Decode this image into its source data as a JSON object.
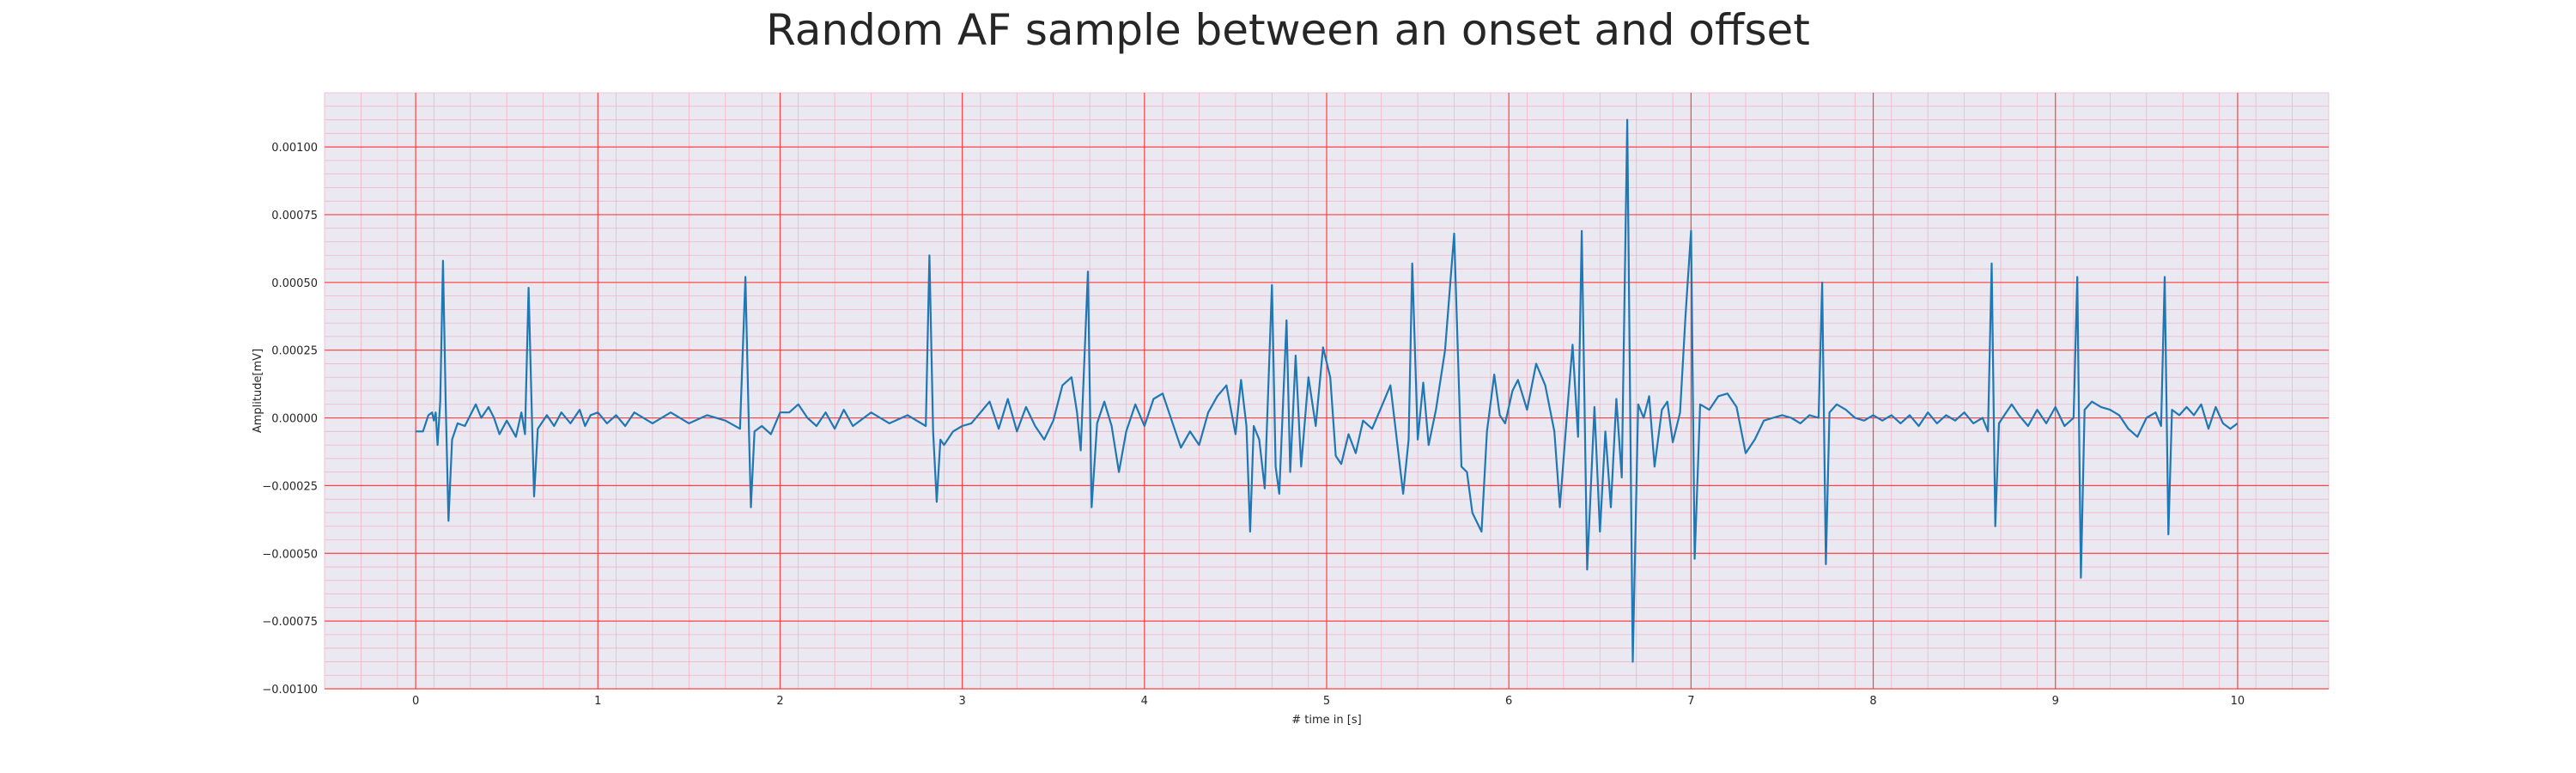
{
  "chart_data": {
    "type": "line",
    "title": "Random AF sample between an onset and offset",
    "xlabel": "# time in [s]",
    "ylabel": "Amplitude[mV]",
    "xlim": [
      -0.5,
      10.5
    ],
    "ylim": [
      -0.001,
      0.0012
    ],
    "x_ticks": [
      0,
      1,
      2,
      3,
      4,
      5,
      6,
      7,
      8,
      9,
      10
    ],
    "x_tick_labels": [
      "0",
      "1",
      "2",
      "3",
      "4",
      "5",
      "6",
      "7",
      "8",
      "9",
      "10"
    ],
    "y_ticks": [
      -0.001,
      -0.00075,
      -0.0005,
      -0.00025,
      0,
      0.00025,
      0.0005,
      0.00075,
      0.001
    ],
    "y_tick_labels": [
      "−0.00100",
      "−0.00075",
      "−0.00050",
      "−0.00025",
      "0.00000",
      "0.00025",
      "0.00050",
      "0.00075",
      "0.00100"
    ],
    "grid": true,
    "colors": {
      "line": "#1f77b4",
      "background": "#eae9f2",
      "major_grid": "#ff4040",
      "minor_grid": "#f4b4c4"
    },
    "series": [
      {
        "points": [
          [
            0,
            -5e-05
          ],
          [
            0.04,
            -5e-05
          ],
          [
            0.07,
            1e-05
          ],
          [
            0.09,
            2e-05
          ],
          [
            0.1,
            -1e-05
          ],
          [
            0.11,
            2e-05
          ],
          [
            0.12,
            -0.0001
          ],
          [
            0.135,
            6e-05
          ],
          [
            0.15,
            0.00058
          ],
          [
            0.165,
            5e-05
          ],
          [
            0.18,
            -0.00038
          ],
          [
            0.2,
            -8e-05
          ],
          [
            0.23,
            -2e-05
          ],
          [
            0.27,
            -3e-05
          ],
          [
            0.3,
            1e-05
          ],
          [
            0.33,
            5e-05
          ],
          [
            0.36,
            0.0
          ],
          [
            0.4,
            4e-05
          ],
          [
            0.43,
            0.0
          ],
          [
            0.46,
            -6e-05
          ],
          [
            0.5,
            -1e-05
          ],
          [
            0.55,
            -7e-05
          ],
          [
            0.58,
            2e-05
          ],
          [
            0.6,
            -6e-05
          ],
          [
            0.62,
            0.00048
          ],
          [
            0.64,
            -5e-05
          ],
          [
            0.65,
            -0.00029
          ],
          [
            0.67,
            -4e-05
          ],
          [
            0.72,
            1e-05
          ],
          [
            0.76,
            -3e-05
          ],
          [
            0.8,
            2e-05
          ],
          [
            0.85,
            -2e-05
          ],
          [
            0.9,
            3e-05
          ],
          [
            0.93,
            -3e-05
          ],
          [
            0.96,
            1e-05
          ],
          [
            1.0,
            2e-05
          ],
          [
            1.05,
            -2e-05
          ],
          [
            1.1,
            1e-05
          ],
          [
            1.15,
            -3e-05
          ],
          [
            1.2,
            2e-05
          ],
          [
            1.3,
            -2e-05
          ],
          [
            1.4,
            2e-05
          ],
          [
            1.5,
            -2e-05
          ],
          [
            1.6,
            1e-05
          ],
          [
            1.7,
            -1e-05
          ],
          [
            1.78,
            -4e-05
          ],
          [
            1.81,
            0.00052
          ],
          [
            1.83,
            -7e-05
          ],
          [
            1.84,
            -0.00033
          ],
          [
            1.86,
            -5e-05
          ],
          [
            1.9,
            -3e-05
          ],
          [
            1.95,
            -6e-05
          ],
          [
            2.0,
            2e-05
          ],
          [
            2.05,
            2e-05
          ],
          [
            2.1,
            5e-05
          ],
          [
            2.15,
            0.0
          ],
          [
            2.2,
            -3e-05
          ],
          [
            2.25,
            2e-05
          ],
          [
            2.3,
            -4e-05
          ],
          [
            2.35,
            3e-05
          ],
          [
            2.4,
            -3e-05
          ],
          [
            2.5,
            2e-05
          ],
          [
            2.6,
            -2e-05
          ],
          [
            2.7,
            1e-05
          ],
          [
            2.8,
            -3e-05
          ],
          [
            2.82,
            0.0006
          ],
          [
            2.84,
            -5e-05
          ],
          [
            2.86,
            -0.00031
          ],
          [
            2.88,
            -8e-05
          ],
          [
            2.9,
            -0.0001
          ],
          [
            2.95,
            -5e-05
          ],
          [
            3.0,
            -3e-05
          ],
          [
            3.05,
            -2e-05
          ],
          [
            3.1,
            2e-05
          ],
          [
            3.15,
            6e-05
          ],
          [
            3.2,
            -4e-05
          ],
          [
            3.25,
            7e-05
          ],
          [
            3.3,
            -5e-05
          ],
          [
            3.35,
            4e-05
          ],
          [
            3.4,
            -3e-05
          ],
          [
            3.45,
            -8e-05
          ],
          [
            3.5,
            -1e-05
          ],
          [
            3.55,
            0.00012
          ],
          [
            3.6,
            0.00015
          ],
          [
            3.63,
            2e-05
          ],
          [
            3.65,
            -0.00012
          ],
          [
            3.69,
            0.00054
          ],
          [
            3.71,
            -0.00033
          ],
          [
            3.74,
            -2e-05
          ],
          [
            3.78,
            6e-05
          ],
          [
            3.82,
            -3e-05
          ],
          [
            3.86,
            -0.0002
          ],
          [
            3.9,
            -5e-05
          ],
          [
            3.95,
            5e-05
          ],
          [
            4.0,
            -3e-05
          ],
          [
            4.05,
            7e-05
          ],
          [
            4.1,
            9e-05
          ],
          [
            4.15,
            -1e-05
          ],
          [
            4.2,
            -0.00011
          ],
          [
            4.25,
            -5e-05
          ],
          [
            4.3,
            -0.0001
          ],
          [
            4.35,
            2e-05
          ],
          [
            4.4,
            8e-05
          ],
          [
            4.45,
            0.00012
          ],
          [
            4.5,
            -6e-05
          ],
          [
            4.53,
            0.00014
          ],
          [
            4.56,
            -3e-05
          ],
          [
            4.58,
            -0.00042
          ],
          [
            4.6,
            -3e-05
          ],
          [
            4.63,
            -8e-05
          ],
          [
            4.66,
            -0.00026
          ],
          [
            4.7,
            0.00049
          ],
          [
            4.72,
            -0.00018
          ],
          [
            4.74,
            -0.00028
          ],
          [
            4.78,
            0.00036
          ],
          [
            4.8,
            -0.0002
          ],
          [
            4.83,
            0.00023
          ],
          [
            4.86,
            -0.00018
          ],
          [
            4.9,
            0.00015
          ],
          [
            4.94,
            -3e-05
          ],
          [
            4.98,
            0.00026
          ],
          [
            5.02,
            0.00015
          ],
          [
            5.05,
            -0.00014
          ],
          [
            5.08,
            -0.00017
          ],
          [
            5.12,
            -6e-05
          ],
          [
            5.16,
            -0.00013
          ],
          [
            5.2,
            -1e-05
          ],
          [
            5.25,
            -4e-05
          ],
          [
            5.3,
            4e-05
          ],
          [
            5.35,
            0.00012
          ],
          [
            5.38,
            -5e-05
          ],
          [
            5.42,
            -0.00028
          ],
          [
            5.45,
            -8e-05
          ],
          [
            5.47,
            0.00057
          ],
          [
            5.5,
            -8e-05
          ],
          [
            5.53,
            0.00013
          ],
          [
            5.56,
            -0.0001
          ],
          [
            5.6,
            3e-05
          ],
          [
            5.65,
            0.00025
          ],
          [
            5.7,
            0.00068
          ],
          [
            5.74,
            -0.00018
          ],
          [
            5.77,
            -0.0002
          ],
          [
            5.8,
            -0.00035
          ],
          [
            5.85,
            -0.00042
          ],
          [
            5.88,
            -5e-05
          ],
          [
            5.92,
            0.00016
          ],
          [
            5.95,
            1e-05
          ],
          [
            5.98,
            -2e-05
          ],
          [
            6.02,
            0.0001
          ],
          [
            6.05,
            0.00014
          ],
          [
            6.1,
            3e-05
          ],
          [
            6.15,
            0.0002
          ],
          [
            6.2,
            0.00012
          ],
          [
            6.25,
            -5e-05
          ],
          [
            6.28,
            -0.00033
          ],
          [
            6.32,
            2e-05
          ],
          [
            6.35,
            0.00027
          ],
          [
            6.38,
            -7e-05
          ],
          [
            6.4,
            0.00069
          ],
          [
            6.43,
            -0.00056
          ],
          [
            6.47,
            4e-05
          ],
          [
            6.5,
            -0.00042
          ],
          [
            6.53,
            -5e-05
          ],
          [
            6.56,
            -0.00033
          ],
          [
            6.59,
            7e-05
          ],
          [
            6.62,
            -0.00022
          ],
          [
            6.65,
            0.0011
          ],
          [
            6.68,
            -0.0009
          ],
          [
            6.71,
            5e-05
          ],
          [
            6.74,
            0.0
          ],
          [
            6.77,
            8e-05
          ],
          [
            6.8,
            -0.00018
          ],
          [
            6.84,
            3e-05
          ],
          [
            6.87,
            6e-05
          ],
          [
            6.9,
            -9e-05
          ],
          [
            6.94,
            2e-05
          ],
          [
            6.97,
            0.00038
          ],
          [
            7.0,
            0.00069
          ],
          [
            7.02,
            -0.00052
          ],
          [
            7.05,
            5e-05
          ],
          [
            7.1,
            3e-05
          ],
          [
            7.15,
            8e-05
          ],
          [
            7.2,
            9e-05
          ],
          [
            7.25,
            4e-05
          ],
          [
            7.3,
            -0.00013
          ],
          [
            7.35,
            -8e-05
          ],
          [
            7.4,
            -1e-05
          ],
          [
            7.45,
            0.0
          ],
          [
            7.5,
            1e-05
          ],
          [
            7.55,
            0.0
          ],
          [
            7.6,
            -2e-05
          ],
          [
            7.65,
            1e-05
          ],
          [
            7.7,
            0.0
          ],
          [
            7.72,
            0.0005
          ],
          [
            7.74,
            -0.00054
          ],
          [
            7.76,
            2e-05
          ],
          [
            7.8,
            5e-05
          ],
          [
            7.85,
            3e-05
          ],
          [
            7.9,
            0.0
          ],
          [
            7.95,
            -1e-05
          ],
          [
            8.0,
            1e-05
          ],
          [
            8.05,
            -1e-05
          ],
          [
            8.1,
            1e-05
          ],
          [
            8.15,
            -2e-05
          ],
          [
            8.2,
            1e-05
          ],
          [
            8.25,
            -3e-05
          ],
          [
            8.3,
            2e-05
          ],
          [
            8.35,
            -2e-05
          ],
          [
            8.4,
            1e-05
          ],
          [
            8.45,
            -1e-05
          ],
          [
            8.5,
            2e-05
          ],
          [
            8.55,
            -2e-05
          ],
          [
            8.6,
            0.0
          ],
          [
            8.63,
            -5e-05
          ],
          [
            8.65,
            0.00057
          ],
          [
            8.67,
            -0.0004
          ],
          [
            8.69,
            -2e-05
          ],
          [
            8.72,
            1e-05
          ],
          [
            8.76,
            5e-05
          ],
          [
            8.8,
            1e-05
          ],
          [
            8.85,
            -3e-05
          ],
          [
            8.9,
            3e-05
          ],
          [
            8.95,
            -2e-05
          ],
          [
            9.0,
            4e-05
          ],
          [
            9.05,
            -3e-05
          ],
          [
            9.1,
            0.0
          ],
          [
            9.12,
            0.00052
          ],
          [
            9.14,
            -0.00059
          ],
          [
            9.16,
            3e-05
          ],
          [
            9.2,
            6e-05
          ],
          [
            9.25,
            4e-05
          ],
          [
            9.3,
            3e-05
          ],
          [
            9.35,
            1e-05
          ],
          [
            9.4,
            -4e-05
          ],
          [
            9.45,
            -7e-05
          ],
          [
            9.5,
            0.0
          ],
          [
            9.55,
            2e-05
          ],
          [
            9.58,
            -3e-05
          ],
          [
            9.6,
            0.00052
          ],
          [
            9.62,
            -0.00043
          ],
          [
            9.64,
            3e-05
          ],
          [
            9.68,
            1e-05
          ],
          [
            9.72,
            4e-05
          ],
          [
            9.76,
            1e-05
          ],
          [
            9.8,
            5e-05
          ],
          [
            9.84,
            -4e-05
          ],
          [
            9.88,
            4e-05
          ],
          [
            9.92,
            -2e-05
          ],
          [
            9.96,
            -4e-05
          ],
          [
            10.0,
            -2e-05
          ]
        ]
      }
    ]
  }
}
